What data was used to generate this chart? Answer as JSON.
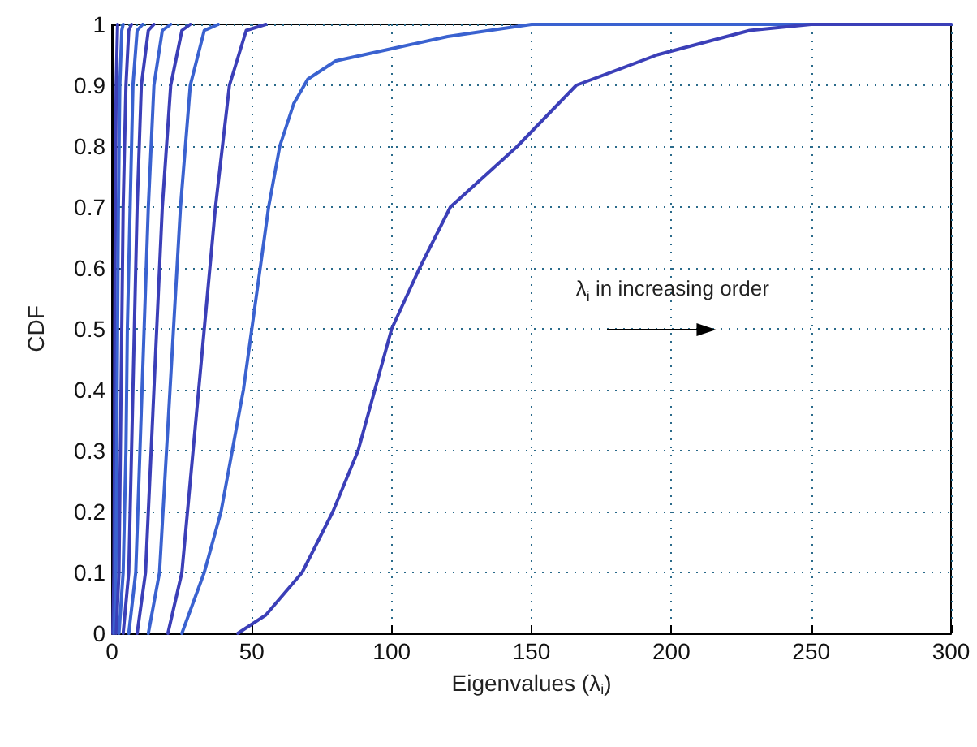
{
  "chart_data": {
    "type": "line",
    "xlabel": "Eigenvalues (λ$_{i}$)",
    "ylabel": "CDF",
    "xlim": [
      0,
      300
    ],
    "xticks": [
      0,
      50,
      100,
      150,
      200,
      250,
      300
    ],
    "ylim": [
      0,
      1
    ],
    "yticks": [
      0,
      0.1,
      0.2,
      0.3,
      0.4,
      0.5,
      0.6,
      0.7,
      0.8,
      0.9,
      1
    ],
    "grid": true,
    "marker": "none",
    "line_style": "solid",
    "annotations": [
      "λ$_{i}$ in increasing order"
    ],
    "series": [
      {
        "color": "#3b3fb8",
        "x": [
          0.3,
          0.7,
          0.9,
          1,
          1.2,
          1.5,
          2
        ],
        "values": [
          0,
          0.1,
          0.3,
          0.5,
          0.7,
          0.9,
          1
        ]
      },
      {
        "color": "#3a62d0",
        "x": [
          0.8,
          1.4,
          1.7,
          2,
          2.3,
          2.8,
          3.5,
          4
        ],
        "values": [
          0,
          0.1,
          0.3,
          0.5,
          0.7,
          0.9,
          0.99,
          1
        ]
      },
      {
        "color": "#3b3fb8",
        "x": [
          1.5,
          2.5,
          3,
          3.5,
          4,
          5,
          6,
          7
        ],
        "values": [
          0,
          0.1,
          0.3,
          0.5,
          0.7,
          0.9,
          0.99,
          1
        ]
      },
      {
        "color": "#3a62d0",
        "x": [
          2.5,
          4,
          5,
          5.5,
          6.5,
          7.5,
          9,
          11
        ],
        "values": [
          0,
          0.1,
          0.3,
          0.5,
          0.7,
          0.9,
          0.99,
          1
        ]
      },
      {
        "color": "#3b3fb8",
        "x": [
          4,
          6,
          7,
          8,
          9,
          10.5,
          13,
          15
        ],
        "values": [
          0,
          0.1,
          0.3,
          0.5,
          0.7,
          0.9,
          0.99,
          1
        ]
      },
      {
        "color": "#3a62d0",
        "x": [
          6,
          8.5,
          10,
          11.5,
          13,
          15,
          18,
          21
        ],
        "values": [
          0,
          0.1,
          0.3,
          0.5,
          0.7,
          0.9,
          0.99,
          1
        ]
      },
      {
        "color": "#3b3fb8",
        "x": [
          9,
          12,
          14,
          16,
          18,
          21,
          25,
          28
        ],
        "values": [
          0,
          0.1,
          0.3,
          0.5,
          0.7,
          0.9,
          0.99,
          1
        ]
      },
      {
        "color": "#3a62d0",
        "x": [
          13,
          17,
          19.5,
          22,
          24.5,
          28,
          33,
          38
        ],
        "values": [
          0,
          0.1,
          0.3,
          0.5,
          0.7,
          0.9,
          0.99,
          1
        ]
      },
      {
        "color": "#3b3fb8",
        "x": [
          20,
          25,
          29,
          33,
          37,
          42,
          48,
          55
        ],
        "values": [
          0,
          0.1,
          0.3,
          0.5,
          0.7,
          0.9,
          0.99,
          1
        ]
      },
      {
        "color": "#3a62d0",
        "x": [
          25,
          33,
          39,
          43,
          47,
          50,
          53,
          56,
          60,
          65,
          70,
          80,
          100,
          120,
          150,
          300
        ],
        "values": [
          0,
          0.1,
          0.2,
          0.3,
          0.4,
          0.5,
          0.6,
          0.7,
          0.8,
          0.87,
          0.91,
          0.94,
          0.96,
          0.98,
          1,
          1
        ]
      },
      {
        "color": "#3b3fb8",
        "x": [
          45,
          55,
          68,
          79,
          88,
          94,
          100,
          110,
          121,
          145,
          166,
          195,
          228,
          250,
          300
        ],
        "values": [
          0,
          0.03,
          0.1,
          0.2,
          0.3,
          0.4,
          0.5,
          0.6,
          0.7,
          0.8,
          0.9,
          0.95,
          0.99,
          1,
          1
        ]
      }
    ]
  }
}
